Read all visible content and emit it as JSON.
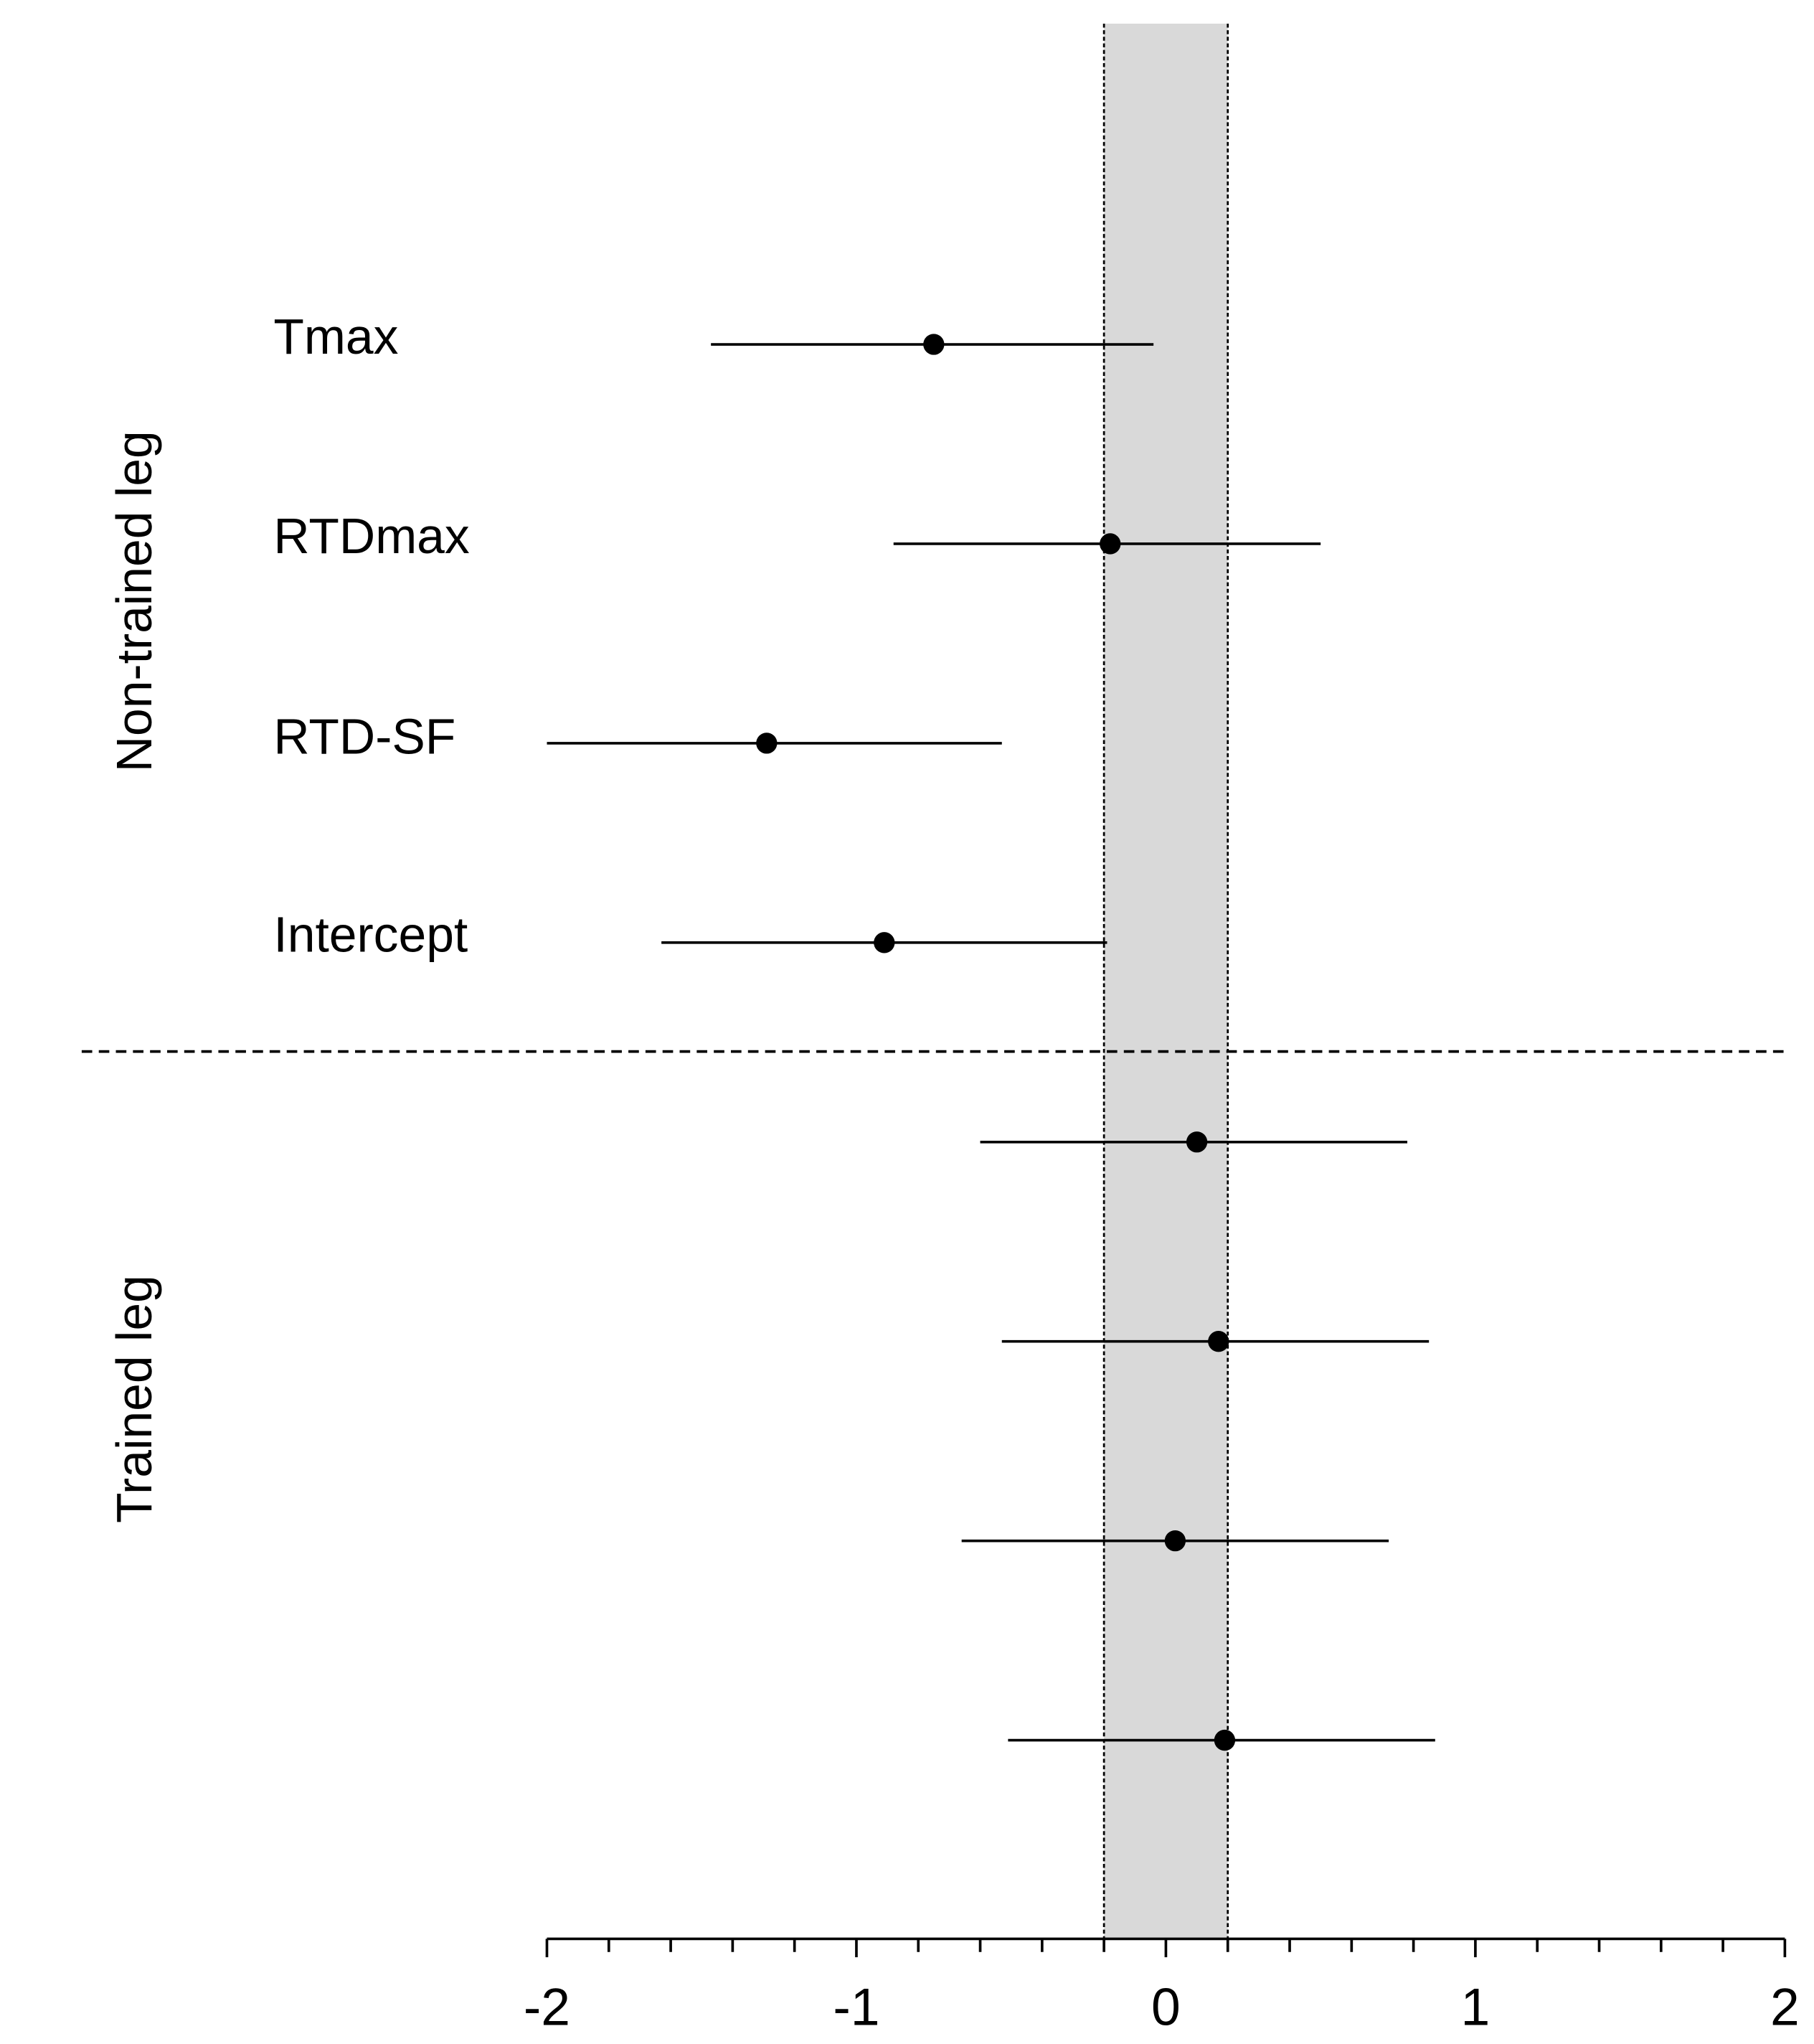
{
  "chart_data": {
    "type": "forest",
    "categories": [
      "Tmax",
      "RTDmax",
      "RTD-SF",
      "Intercept",
      null,
      null,
      null,
      null
    ],
    "values": [
      -0.75,
      -0.18,
      -1.29,
      -0.91,
      0.1,
      0.17,
      0.03,
      0.19
    ],
    "lower": [
      -1.47,
      -0.88,
      -2.0,
      -1.63,
      -0.6,
      -0.53,
      -0.66,
      -0.51
    ],
    "upper": [
      -0.04,
      0.5,
      -0.53,
      -0.19,
      0.78,
      0.85,
      0.72,
      0.87
    ],
    "groups": [
      {
        "label": "Non-trained leg",
        "rows": [
          0,
          3
        ]
      },
      {
        "label": "Trained leg",
        "rows": [
          4,
          7
        ]
      }
    ],
    "band": [
      -0.2,
      0.2
    ],
    "band_color": "#d9d9d9",
    "color": "#000000",
    "xlim": [
      -2,
      2
    ],
    "xticks": [
      -2,
      -1,
      0,
      1,
      2
    ],
    "minor_xticks": [
      -1.8,
      -1.6,
      -1.4,
      -1.2,
      -0.8,
      -0.6,
      -0.4,
      -0.2,
      0.2,
      0.4,
      0.6,
      0.8,
      1.2,
      1.4,
      1.6,
      1.8
    ]
  }
}
